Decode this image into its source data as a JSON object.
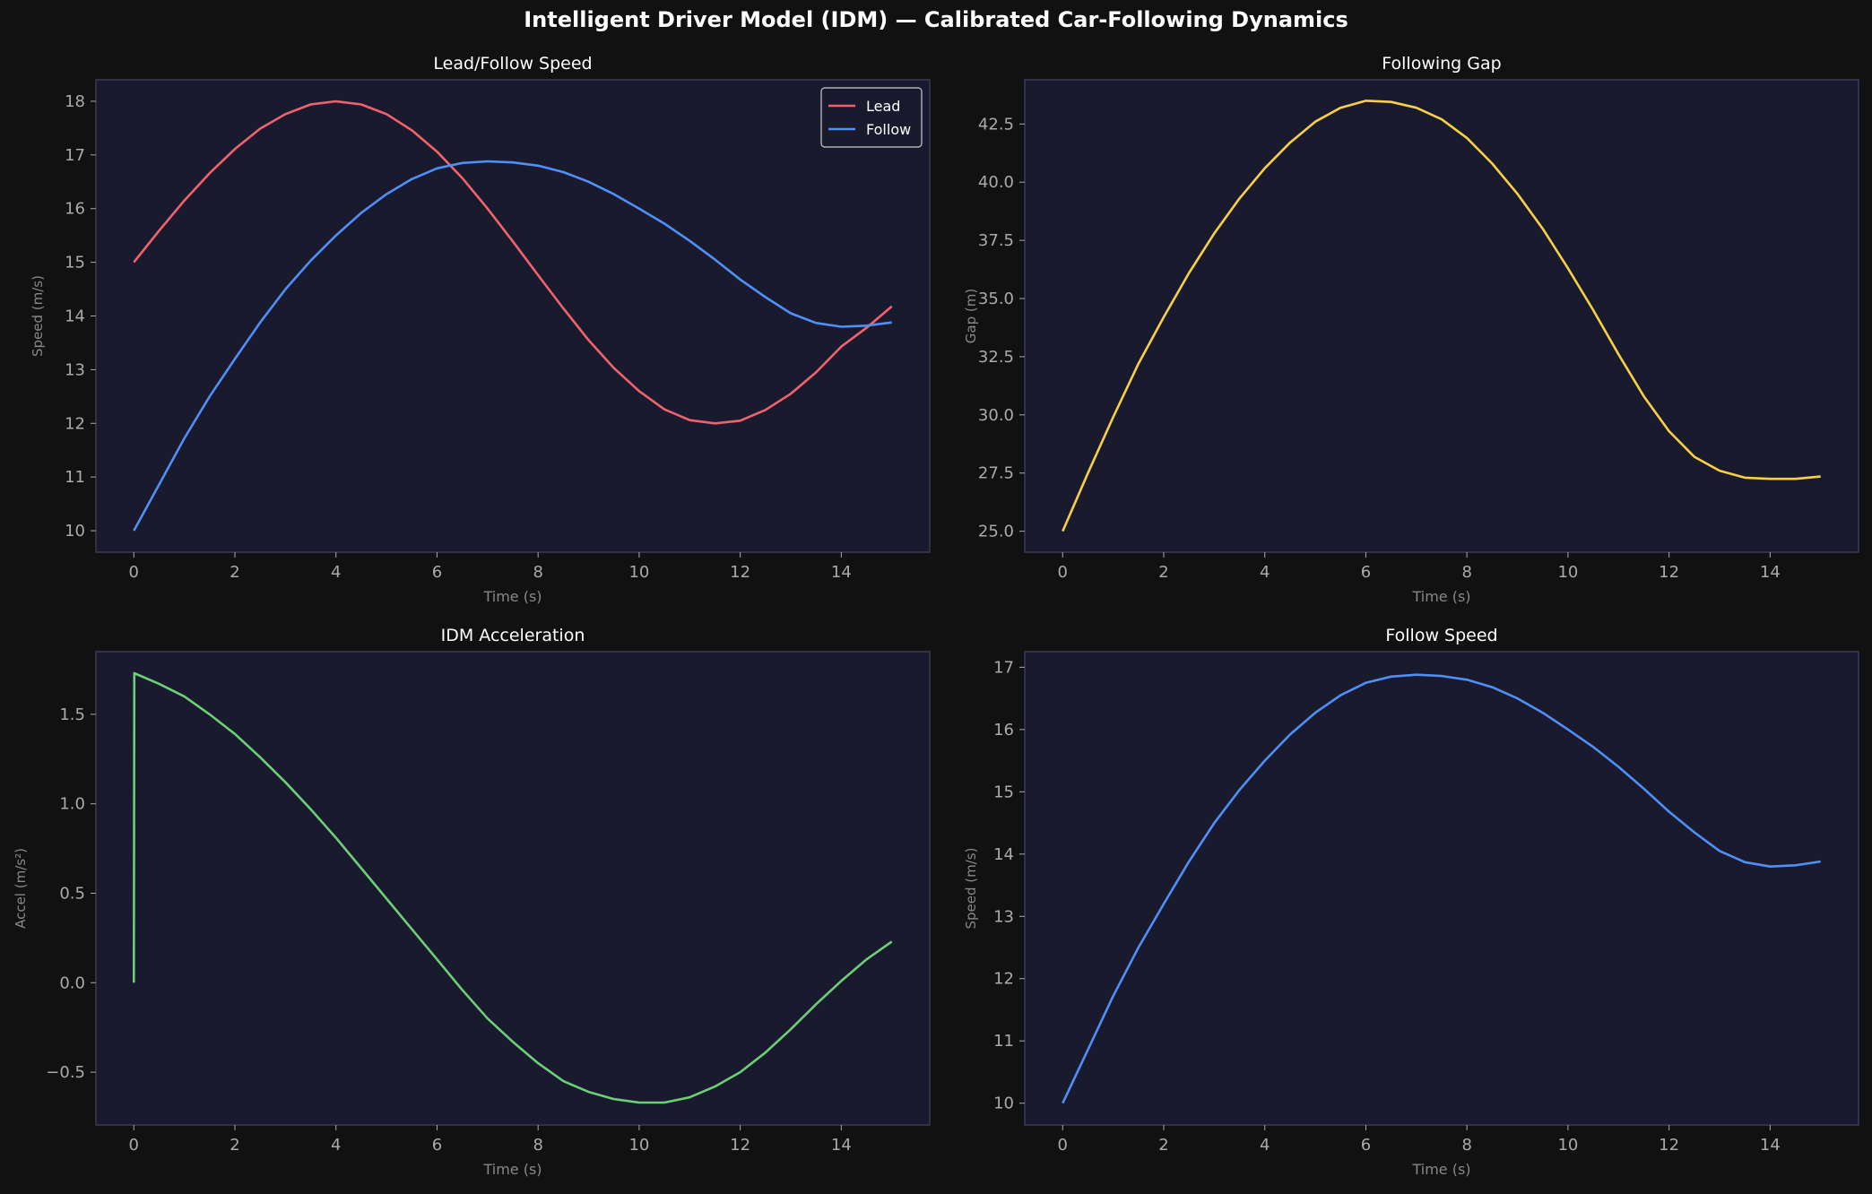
{
  "suptitle": "Intelligent Driver Model (IDM) — Calibrated Car-Following Dynamics",
  "colors": {
    "background": "#111111",
    "panel": "#1a1a2e",
    "spine": "#3a3a55",
    "tick": "#aaaaaa",
    "label": "#888888",
    "title": "#ffffff",
    "lead": "#f0636e",
    "follow": "#4f8ff7",
    "gap": "#f7d046",
    "accel": "#6ccf78"
  },
  "chart_data": [
    {
      "type": "line",
      "title": "Lead/Follow Speed",
      "xlabel": "Time (s)",
      "ylabel": "Speed (m/s)",
      "xlim": [
        -0.75,
        15.75
      ],
      "ylim": [
        9.6,
        18.4
      ],
      "xticks": [
        0,
        2,
        4,
        6,
        8,
        10,
        12,
        14
      ],
      "yticks": [
        10,
        11,
        12,
        13,
        14,
        15,
        16,
        17,
        18
      ],
      "legend": "top-right",
      "grid": false,
      "x": [
        0,
        0.5,
        1,
        1.5,
        2,
        2.5,
        3,
        3.5,
        4,
        4.5,
        5,
        5.5,
        6,
        6.5,
        7,
        7.5,
        8,
        8.5,
        9,
        9.5,
        10,
        10.5,
        11,
        11.5,
        12,
        12.5,
        13,
        13.5,
        14,
        14.5,
        15
      ],
      "series": [
        {
          "name": "Lead",
          "color": "#f0636e",
          "values": [
            15.0,
            15.59,
            16.15,
            16.66,
            17.11,
            17.49,
            17.76,
            17.94,
            18.0,
            17.94,
            17.76,
            17.46,
            17.06,
            16.57,
            16.0,
            15.39,
            14.76,
            14.14,
            13.55,
            13.03,
            12.6,
            12.26,
            12.06,
            12.0,
            12.05,
            12.25,
            12.55,
            12.95,
            13.43,
            13.78,
            14.18
          ]
        },
        {
          "name": "Follow",
          "color": "#4f8ff7",
          "values": [
            10.0,
            10.86,
            11.72,
            12.5,
            13.2,
            13.88,
            14.5,
            15.03,
            15.5,
            15.92,
            16.27,
            16.55,
            16.75,
            16.85,
            16.88,
            16.86,
            16.8,
            16.68,
            16.5,
            16.27,
            16.0,
            15.72,
            15.4,
            15.05,
            14.68,
            14.35,
            14.05,
            13.87,
            13.8,
            13.82,
            13.88
          ]
        }
      ]
    },
    {
      "type": "line",
      "title": "Following Gap",
      "xlabel": "Time (s)",
      "ylabel": "Gap (m)",
      "xlim": [
        -0.75,
        15.75
      ],
      "ylim": [
        24.1,
        44.4
      ],
      "xticks": [
        0,
        2,
        4,
        6,
        8,
        10,
        12,
        14
      ],
      "yticks": [
        25.0,
        27.5,
        30.0,
        32.5,
        35.0,
        37.5,
        40.0,
        42.5
      ],
      "ytick_labels": [
        "25.0",
        "27.5",
        "30.0",
        "32.5",
        "35.0",
        "37.5",
        "40.0",
        "42.5"
      ],
      "grid": false,
      "x": [
        0,
        0.5,
        1,
        1.5,
        2,
        2.5,
        3,
        3.5,
        4,
        4.5,
        5,
        5.5,
        6,
        6.5,
        7,
        7.5,
        8,
        8.5,
        9,
        9.5,
        10,
        10.5,
        11,
        11.5,
        12,
        12.5,
        13,
        13.5,
        14,
        14.5,
        15
      ],
      "series": [
        {
          "name": "",
          "color": "#f7d046",
          "values": [
            25.0,
            27.5,
            29.9,
            32.2,
            34.2,
            36.1,
            37.8,
            39.3,
            40.6,
            41.7,
            42.6,
            43.2,
            43.5,
            43.45,
            43.2,
            42.7,
            41.9,
            40.8,
            39.5,
            38.0,
            36.3,
            34.5,
            32.6,
            30.8,
            29.3,
            28.2,
            27.6,
            27.3,
            27.25,
            27.25,
            27.35
          ]
        }
      ]
    },
    {
      "type": "line",
      "title": "IDM Acceleration",
      "xlabel": "Time (s)",
      "ylabel": "Accel (m/s²)",
      "xlim": [
        -0.75,
        15.75
      ],
      "ylim": [
        -0.795,
        1.85
      ],
      "xticks": [
        0,
        2,
        4,
        6,
        8,
        10,
        12,
        14
      ],
      "yticks": [
        -0.5,
        0.0,
        0.5,
        1.0,
        1.5
      ],
      "ytick_labels": [
        "−0.5",
        "0.0",
        "0.5",
        "1.0",
        "1.5"
      ],
      "grid": false,
      "x": [
        0,
        0.01,
        0.5,
        1,
        1.5,
        2,
        2.5,
        3,
        3.5,
        4,
        4.5,
        5,
        5.5,
        6,
        6.5,
        7,
        7.5,
        8,
        8.5,
        9,
        9.5,
        10,
        10.5,
        11,
        11.5,
        12,
        12.5,
        13,
        13.5,
        14,
        14.5,
        15
      ],
      "series": [
        {
          "name": "",
          "color": "#6ccf78",
          "values": [
            0.0,
            1.73,
            1.67,
            1.6,
            1.5,
            1.39,
            1.26,
            1.12,
            0.97,
            0.81,
            0.64,
            0.47,
            0.3,
            0.13,
            -0.04,
            -0.2,
            -0.33,
            -0.45,
            -0.55,
            -0.61,
            -0.65,
            -0.67,
            -0.67,
            -0.64,
            -0.58,
            -0.5,
            -0.39,
            -0.26,
            -0.12,
            0.01,
            0.13,
            0.23
          ]
        }
      ]
    },
    {
      "type": "line",
      "title": "Follow Speed",
      "xlabel": "Time (s)",
      "ylabel": "Speed (m/s)",
      "xlim": [
        -0.75,
        15.75
      ],
      "ylim": [
        9.65,
        17.25
      ],
      "xticks": [
        0,
        2,
        4,
        6,
        8,
        10,
        12,
        14
      ],
      "yticks": [
        10,
        11,
        12,
        13,
        14,
        15,
        16,
        17
      ],
      "grid": false,
      "x": [
        0,
        0.5,
        1,
        1.5,
        2,
        2.5,
        3,
        3.5,
        4,
        4.5,
        5,
        5.5,
        6,
        6.5,
        7,
        7.5,
        8,
        8.5,
        9,
        9.5,
        10,
        10.5,
        11,
        11.5,
        12,
        12.5,
        13,
        13.5,
        14,
        14.5,
        15
      ],
      "series": [
        {
          "name": "",
          "color": "#4f8ff7",
          "values": [
            10.0,
            10.86,
            11.72,
            12.5,
            13.2,
            13.88,
            14.5,
            15.03,
            15.5,
            15.92,
            16.27,
            16.55,
            16.75,
            16.85,
            16.88,
            16.86,
            16.8,
            16.68,
            16.5,
            16.27,
            16.0,
            15.72,
            15.4,
            15.05,
            14.68,
            14.35,
            14.05,
            13.87,
            13.8,
            13.82,
            13.88
          ]
        }
      ]
    }
  ]
}
